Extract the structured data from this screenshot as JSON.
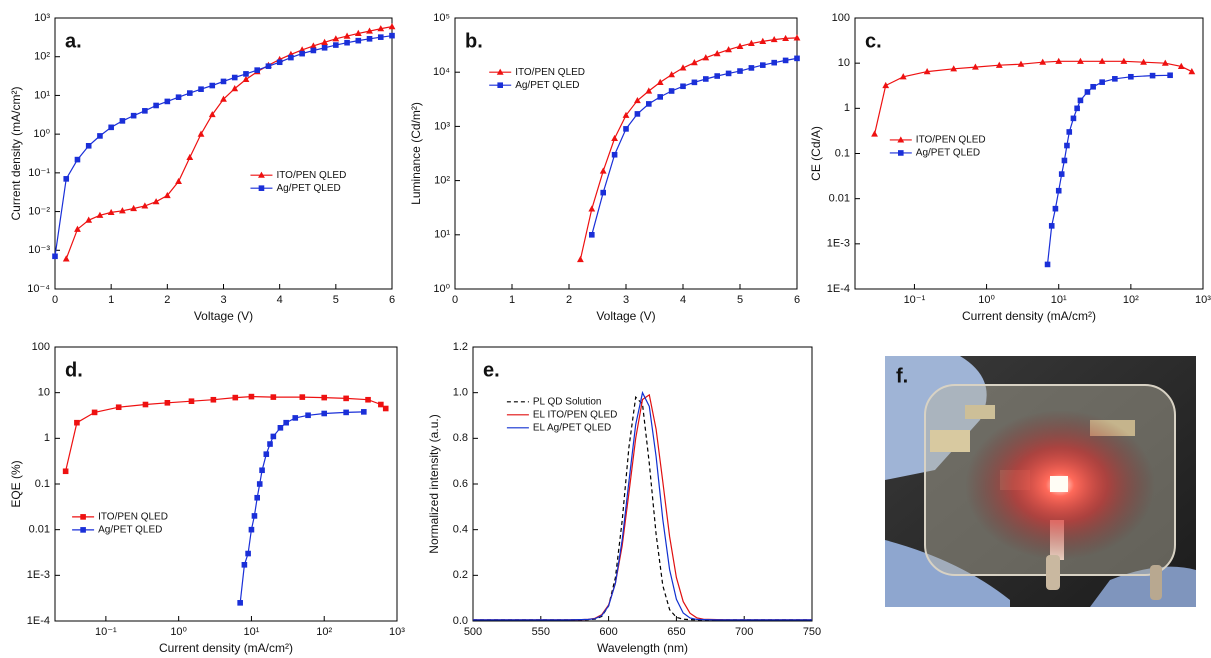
{
  "chart_data": [
    {
      "type": "line",
      "annotation": "a.",
      "xlabel": "Voltage (V)",
      "ylabel": "Current density (mA/cm²)",
      "xscale": "linear",
      "yscale": "log",
      "xlim": [
        0,
        6
      ],
      "ylim": [
        0.0001,
        1000
      ],
      "xticks": [
        0,
        1,
        2,
        3,
        4,
        5,
        6
      ],
      "yticks": [
        {
          "value": 0.0001,
          "label": "10⁻⁴"
        },
        {
          "value": 0.001,
          "label": "10⁻³"
        },
        {
          "value": 0.01,
          "label": "10⁻²"
        },
        {
          "value": 0.1,
          "label": "10⁻¹"
        },
        {
          "value": 1,
          "label": "10⁰"
        },
        {
          "value": 10,
          "label": "10¹"
        },
        {
          "value": 100,
          "label": "10²"
        },
        {
          "value": 1000,
          "label": "10³"
        }
      ],
      "legend": "center right",
      "x": [
        0,
        0.2,
        0.4,
        0.6,
        0.8,
        1.0,
        1.2,
        1.4,
        1.6,
        1.8,
        2.0,
        2.2,
        2.4,
        2.6,
        2.8,
        3.0,
        3.2,
        3.4,
        3.6,
        3.8,
        4.0,
        4.2,
        4.4,
        4.6,
        4.8,
        5.0,
        5.2,
        5.4,
        5.6,
        5.8,
        6.0
      ],
      "series": [
        {
          "name": "ITO/PEN QLED",
          "color": "#ee1111",
          "marker": "triangle",
          "values": [
            null,
            0.0006,
            0.0035,
            0.006,
            0.008,
            0.0095,
            0.0105,
            0.012,
            0.014,
            0.018,
            0.026,
            0.06,
            0.25,
            1.0,
            3.2,
            8,
            15,
            26,
            41,
            60,
            85,
            115,
            150,
            190,
            235,
            290,
            340,
            400,
            460,
            530,
            600
          ]
        },
        {
          "name": "Ag/PET QLED",
          "color": "#1a2fd8",
          "marker": "square",
          "values": [
            0.0007,
            0.07,
            0.22,
            0.5,
            0.9,
            1.5,
            2.2,
            3,
            4,
            5.5,
            7,
            9,
            11.5,
            14.5,
            18,
            23,
            29,
            36,
            45,
            57,
            72,
            95,
            120,
            145,
            170,
            200,
            230,
            260,
            290,
            320,
            350
          ]
        }
      ]
    },
    {
      "type": "line",
      "annotation": "b.",
      "xlabel": "Voltage (V)",
      "ylabel": "Luminance (Cd/m²)",
      "xscale": "linear",
      "yscale": "log",
      "xlim": [
        0,
        6
      ],
      "ylim": [
        1,
        100000
      ],
      "xticks": [
        0,
        1,
        2,
        3,
        4,
        5,
        6
      ],
      "yticks": [
        {
          "value": 1,
          "label": "10⁰"
        },
        {
          "value": 10,
          "label": "10¹"
        },
        {
          "value": 100,
          "label": "10²"
        },
        {
          "value": 1000,
          "label": "10³"
        },
        {
          "value": 10000,
          "label": "10⁴"
        },
        {
          "value": 100000,
          "label": "10⁵"
        }
      ],
      "legend": "upper left",
      "x": [
        2.2,
        2.4,
        2.6,
        2.8,
        3.0,
        3.2,
        3.4,
        3.6,
        3.8,
        4.0,
        4.2,
        4.4,
        4.6,
        4.8,
        5.0,
        5.2,
        5.4,
        5.6,
        5.8,
        6.0
      ],
      "series": [
        {
          "name": "ITO/PEN QLED",
          "color": "#ee1111",
          "marker": "triangle",
          "values": [
            3.5,
            30,
            150,
            600,
            1600,
            3000,
            4500,
            6500,
            9000,
            12000,
            15000,
            18500,
            22000,
            26000,
            30000,
            34000,
            37000,
            40000,
            42000,
            43000
          ]
        },
        {
          "name": "Ag/PET QLED",
          "color": "#1a2fd8",
          "marker": "square",
          "values": [
            null,
            10,
            60,
            300,
            900,
            1700,
            2600,
            3500,
            4500,
            5500,
            6500,
            7500,
            8500,
            9500,
            10500,
            12000,
            13500,
            15000,
            16500,
            18000
          ]
        }
      ]
    },
    {
      "type": "line",
      "annotation": "c.",
      "xlabel": "Current density (mA/cm²)",
      "ylabel": "CE (Cd/A)",
      "xscale": "log",
      "yscale": "log",
      "xlim": [
        0.015,
        1000
      ],
      "ylim": [
        0.0001,
        100
      ],
      "xticks": [
        {
          "value": 0.1,
          "label": "10⁻¹"
        },
        {
          "value": 1,
          "label": "10⁰"
        },
        {
          "value": 10,
          "label": "10¹"
        },
        {
          "value": 100,
          "label": "10²"
        },
        {
          "value": 1000,
          "label": "10³"
        }
      ],
      "yticks": [
        {
          "value": 0.0001,
          "label": "1E-4"
        },
        {
          "value": 0.001,
          "label": "1E-3"
        },
        0.01,
        0.1,
        1,
        10,
        100
      ],
      "legend": "center left",
      "series": [
        {
          "name": "ITO/PEN QLED",
          "color": "#ee1111",
          "marker": "triangle",
          "x": [
            0.028,
            0.04,
            0.07,
            0.15,
            0.35,
            0.7,
            1.5,
            3,
            6,
            10,
            20,
            40,
            80,
            150,
            300,
            500,
            700
          ],
          "values": [
            0.27,
            3.2,
            5,
            6.5,
            7.5,
            8.2,
            9,
            9.5,
            10.5,
            11,
            11,
            11,
            11,
            10.5,
            10,
            8.5,
            6.5
          ]
        },
        {
          "name": "Ag/PET QLED",
          "color": "#1a2fd8",
          "marker": "square",
          "x": [
            7,
            8,
            9,
            10,
            11,
            12,
            13,
            14,
            16,
            18,
            20,
            25,
            30,
            40,
            60,
            100,
            200,
            350
          ],
          "values": [
            0.00035,
            0.0025,
            0.006,
            0.015,
            0.035,
            0.07,
            0.15,
            0.3,
            0.6,
            1.0,
            1.5,
            2.3,
            3,
            3.8,
            4.5,
            5,
            5.3,
            5.4
          ]
        }
      ]
    },
    {
      "type": "line",
      "annotation": "d.",
      "xlabel": "Current density (mA/cm²)",
      "ylabel": "EQE (%)",
      "xscale": "log",
      "yscale": "log",
      "xlim": [
        0.02,
        1000
      ],
      "ylim": [
        0.0001,
        100
      ],
      "xticks": [
        {
          "value": 0.1,
          "label": "10⁻¹"
        },
        {
          "value": 1,
          "label": "10⁰"
        },
        {
          "value": 10,
          "label": "10¹"
        },
        {
          "value": 100,
          "label": "10²"
        },
        {
          "value": 1000,
          "label": "10³"
        }
      ],
      "yticks": [
        {
          "value": 0.0001,
          "label": "1E-4"
        },
        {
          "value": 0.001,
          "label": "1E-3"
        },
        0.01,
        0.1,
        1,
        10,
        100
      ],
      "legend": "lower left",
      "series": [
        {
          "name": "ITO/PEN QLED",
          "color": "#ee1111",
          "marker": "square",
          "x": [
            0.028,
            0.04,
            0.07,
            0.15,
            0.35,
            0.7,
            1.5,
            3,
            6,
            10,
            20,
            50,
            100,
            200,
            400,
            600,
            700
          ],
          "values": [
            0.19,
            2.2,
            3.7,
            4.8,
            5.5,
            6,
            6.5,
            7,
            7.8,
            8.2,
            8,
            8,
            7.8,
            7.5,
            7,
            5.5,
            4.5
          ]
        },
        {
          "name": "Ag/PET QLED",
          "color": "#1a2fd8",
          "marker": "square",
          "x": [
            7,
            8,
            9,
            10,
            11,
            12,
            13,
            14,
            16,
            18,
            20,
            25,
            30,
            40,
            60,
            100,
            200,
            350
          ],
          "values": [
            0.00025,
            0.0017,
            0.003,
            0.01,
            0.02,
            0.05,
            0.1,
            0.2,
            0.45,
            0.75,
            1.1,
            1.7,
            2.2,
            2.8,
            3.2,
            3.5,
            3.7,
            3.8
          ]
        }
      ]
    },
    {
      "type": "line",
      "annotation": "e.",
      "xlabel": "Wavelength (nm)",
      "ylabel": "Normalized intensity (a.u.)",
      "xscale": "linear",
      "yscale": "linear",
      "xlim": [
        500,
        750
      ],
      "ylim": [
        0,
        1.2
      ],
      "xticks": [
        500,
        550,
        600,
        650,
        700,
        750
      ],
      "yticks": [
        {
          "value": 0,
          "label": "0.0"
        },
        0.2,
        0.4,
        0.6,
        0.8,
        {
          "value": 1,
          "label": "1.0"
        },
        1.2
      ],
      "legend": "upper left",
      "x": [
        500,
        520,
        540,
        560,
        570,
        580,
        585,
        590,
        595,
        600,
        605,
        610,
        615,
        620,
        625,
        630,
        635,
        640,
        645,
        650,
        655,
        660,
        665,
        670,
        680,
        690,
        700,
        720,
        740,
        750
      ],
      "series": [
        {
          "name": "PL QD Solution",
          "color": "#000000",
          "linestyle": "dashed",
          "values": [
            0.005,
            0.005,
            0.005,
            0.005,
            0.005,
            0.005,
            0.006,
            0.008,
            0.02,
            0.066,
            0.19,
            0.44,
            0.76,
            0.98,
            0.95,
            0.69,
            0.38,
            0.155,
            0.05,
            0.016,
            0.008,
            0.006,
            0.005,
            0.005,
            0.005,
            0.005,
            0.005,
            0.005,
            0.005,
            0.005
          ]
        },
        {
          "name": "EL ITO/PEN QLED",
          "color": "#e01010",
          "linestyle": "solid",
          "values": [
            0.005,
            0.005,
            0.005,
            0.005,
            0.005,
            0.006,
            0.007,
            0.012,
            0.028,
            0.07,
            0.165,
            0.33,
            0.56,
            0.8,
            0.97,
            0.99,
            0.84,
            0.61,
            0.37,
            0.19,
            0.085,
            0.034,
            0.014,
            0.008,
            0.006,
            0.005,
            0.005,
            0.005,
            0.005,
            0.005
          ]
        },
        {
          "name": "EL Ag/PET QLED",
          "color": "#1030d0",
          "linestyle": "solid",
          "values": [
            0.005,
            0.005,
            0.005,
            0.005,
            0.005,
            0.006,
            0.007,
            0.01,
            0.024,
            0.066,
            0.165,
            0.355,
            0.61,
            0.86,
            1.0,
            0.94,
            0.72,
            0.445,
            0.225,
            0.095,
            0.035,
            0.013,
            0.007,
            0.006,
            0.005,
            0.005,
            0.005,
            0.005,
            0.005,
            0.005
          ]
        }
      ]
    }
  ],
  "photo_panel": {
    "label": "f."
  }
}
